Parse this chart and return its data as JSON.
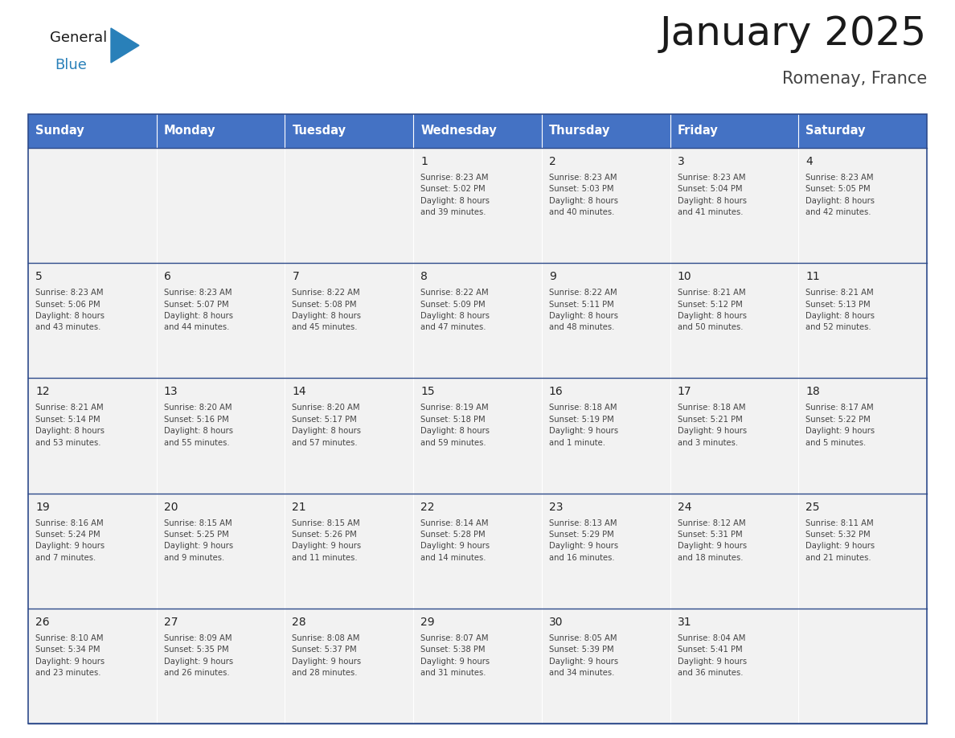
{
  "title": "January 2025",
  "subtitle": "Romenay, France",
  "header_color": "#4472C4",
  "header_text_color": "#FFFFFF",
  "day_names": [
    "Sunday",
    "Monday",
    "Tuesday",
    "Wednesday",
    "Thursday",
    "Friday",
    "Saturday"
  ],
  "cell_bg_color": "#F2F2F2",
  "divider_color": "#2E4B8B",
  "text_color": "#222222",
  "small_text_color": "#444444",
  "logo_general_color": "#1a1a1a",
  "logo_blue_color": "#2980B9",
  "weeks": [
    [
      {
        "day": "",
        "info": ""
      },
      {
        "day": "",
        "info": ""
      },
      {
        "day": "",
        "info": ""
      },
      {
        "day": "1",
        "info": "Sunrise: 8:23 AM\nSunset: 5:02 PM\nDaylight: 8 hours\nand 39 minutes."
      },
      {
        "day": "2",
        "info": "Sunrise: 8:23 AM\nSunset: 5:03 PM\nDaylight: 8 hours\nand 40 minutes."
      },
      {
        "day": "3",
        "info": "Sunrise: 8:23 AM\nSunset: 5:04 PM\nDaylight: 8 hours\nand 41 minutes."
      },
      {
        "day": "4",
        "info": "Sunrise: 8:23 AM\nSunset: 5:05 PM\nDaylight: 8 hours\nand 42 minutes."
      }
    ],
    [
      {
        "day": "5",
        "info": "Sunrise: 8:23 AM\nSunset: 5:06 PM\nDaylight: 8 hours\nand 43 minutes."
      },
      {
        "day": "6",
        "info": "Sunrise: 8:23 AM\nSunset: 5:07 PM\nDaylight: 8 hours\nand 44 minutes."
      },
      {
        "day": "7",
        "info": "Sunrise: 8:22 AM\nSunset: 5:08 PM\nDaylight: 8 hours\nand 45 minutes."
      },
      {
        "day": "8",
        "info": "Sunrise: 8:22 AM\nSunset: 5:09 PM\nDaylight: 8 hours\nand 47 minutes."
      },
      {
        "day": "9",
        "info": "Sunrise: 8:22 AM\nSunset: 5:11 PM\nDaylight: 8 hours\nand 48 minutes."
      },
      {
        "day": "10",
        "info": "Sunrise: 8:21 AM\nSunset: 5:12 PM\nDaylight: 8 hours\nand 50 minutes."
      },
      {
        "day": "11",
        "info": "Sunrise: 8:21 AM\nSunset: 5:13 PM\nDaylight: 8 hours\nand 52 minutes."
      }
    ],
    [
      {
        "day": "12",
        "info": "Sunrise: 8:21 AM\nSunset: 5:14 PM\nDaylight: 8 hours\nand 53 minutes."
      },
      {
        "day": "13",
        "info": "Sunrise: 8:20 AM\nSunset: 5:16 PM\nDaylight: 8 hours\nand 55 minutes."
      },
      {
        "day": "14",
        "info": "Sunrise: 8:20 AM\nSunset: 5:17 PM\nDaylight: 8 hours\nand 57 minutes."
      },
      {
        "day": "15",
        "info": "Sunrise: 8:19 AM\nSunset: 5:18 PM\nDaylight: 8 hours\nand 59 minutes."
      },
      {
        "day": "16",
        "info": "Sunrise: 8:18 AM\nSunset: 5:19 PM\nDaylight: 9 hours\nand 1 minute."
      },
      {
        "day": "17",
        "info": "Sunrise: 8:18 AM\nSunset: 5:21 PM\nDaylight: 9 hours\nand 3 minutes."
      },
      {
        "day": "18",
        "info": "Sunrise: 8:17 AM\nSunset: 5:22 PM\nDaylight: 9 hours\nand 5 minutes."
      }
    ],
    [
      {
        "day": "19",
        "info": "Sunrise: 8:16 AM\nSunset: 5:24 PM\nDaylight: 9 hours\nand 7 minutes."
      },
      {
        "day": "20",
        "info": "Sunrise: 8:15 AM\nSunset: 5:25 PM\nDaylight: 9 hours\nand 9 minutes."
      },
      {
        "day": "21",
        "info": "Sunrise: 8:15 AM\nSunset: 5:26 PM\nDaylight: 9 hours\nand 11 minutes."
      },
      {
        "day": "22",
        "info": "Sunrise: 8:14 AM\nSunset: 5:28 PM\nDaylight: 9 hours\nand 14 minutes."
      },
      {
        "day": "23",
        "info": "Sunrise: 8:13 AM\nSunset: 5:29 PM\nDaylight: 9 hours\nand 16 minutes."
      },
      {
        "day": "24",
        "info": "Sunrise: 8:12 AM\nSunset: 5:31 PM\nDaylight: 9 hours\nand 18 minutes."
      },
      {
        "day": "25",
        "info": "Sunrise: 8:11 AM\nSunset: 5:32 PM\nDaylight: 9 hours\nand 21 minutes."
      }
    ],
    [
      {
        "day": "26",
        "info": "Sunrise: 8:10 AM\nSunset: 5:34 PM\nDaylight: 9 hours\nand 23 minutes."
      },
      {
        "day": "27",
        "info": "Sunrise: 8:09 AM\nSunset: 5:35 PM\nDaylight: 9 hours\nand 26 minutes."
      },
      {
        "day": "28",
        "info": "Sunrise: 8:08 AM\nSunset: 5:37 PM\nDaylight: 9 hours\nand 28 minutes."
      },
      {
        "day": "29",
        "info": "Sunrise: 8:07 AM\nSunset: 5:38 PM\nDaylight: 9 hours\nand 31 minutes."
      },
      {
        "day": "30",
        "info": "Sunrise: 8:05 AM\nSunset: 5:39 PM\nDaylight: 9 hours\nand 34 minutes."
      },
      {
        "day": "31",
        "info": "Sunrise: 8:04 AM\nSunset: 5:41 PM\nDaylight: 9 hours\nand 36 minutes."
      },
      {
        "day": "",
        "info": ""
      }
    ]
  ]
}
